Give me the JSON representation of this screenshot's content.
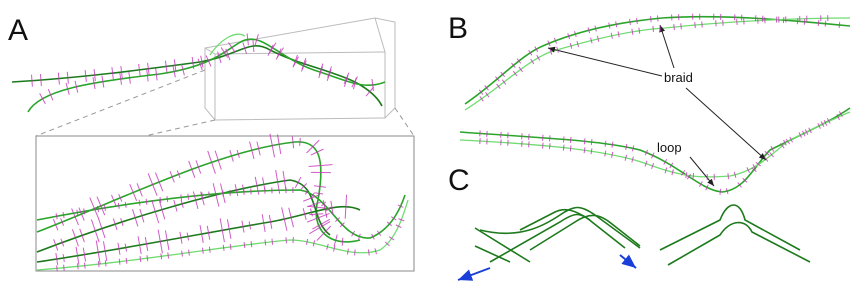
{
  "panels": [
    {
      "label": "A"
    },
    {
      "label": "B"
    },
    {
      "label": "C"
    }
  ],
  "annotations": [
    "braid",
    "loop"
  ]
}
